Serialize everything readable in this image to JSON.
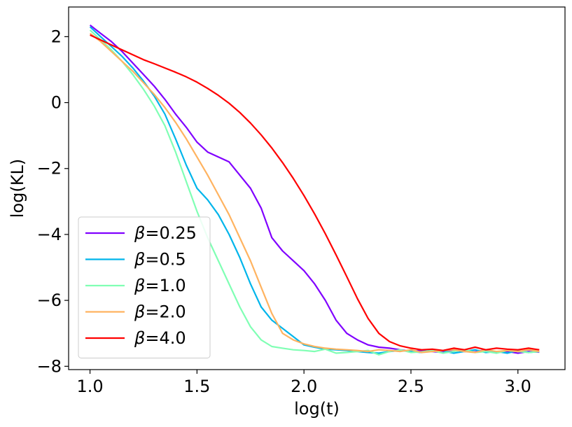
{
  "chart_data": {
    "type": "line",
    "title": "",
    "xlabel": "log(t)",
    "ylabel": "log(KL)",
    "xlim": [
      0.9,
      3.22
    ],
    "ylim": [
      -8.1,
      2.9
    ],
    "xticks": [
      1.0,
      1.5,
      2.0,
      2.5,
      3.0
    ],
    "xtick_labels": [
      "1.0",
      "1.5",
      "2.0",
      "2.5",
      "3.0"
    ],
    "yticks": [
      2,
      0,
      -2,
      -4,
      -6,
      -8
    ],
    "ytick_labels": [
      "2",
      "0",
      "−2",
      "−4",
      "−6",
      "−8"
    ],
    "legend_position": "lower-left",
    "grid": false,
    "series": [
      {
        "name": "β=0.25",
        "symbol": "β",
        "value_label": "=0.25",
        "color": "#8000ff",
        "x": [
          1.0,
          1.05,
          1.1,
          1.15,
          1.2,
          1.25,
          1.3,
          1.35,
          1.4,
          1.45,
          1.5,
          1.55,
          1.6,
          1.65,
          1.7,
          1.75,
          1.8,
          1.85,
          1.9,
          1.95,
          2.0,
          2.05,
          2.1,
          2.15,
          2.2,
          2.25,
          2.3,
          2.35,
          2.4,
          2.45,
          2.5,
          2.55,
          2.6,
          2.65,
          2.7,
          2.75,
          2.8,
          2.85,
          2.9,
          2.95,
          3.0,
          3.05,
          3.1
        ],
        "y": [
          2.35,
          2.1,
          1.85,
          1.55,
          1.2,
          0.85,
          0.5,
          0.1,
          -0.35,
          -0.75,
          -1.2,
          -1.5,
          -1.65,
          -1.8,
          -2.2,
          -2.6,
          -3.2,
          -4.1,
          -4.5,
          -4.8,
          -5.1,
          -5.5,
          -6.0,
          -6.6,
          -7.0,
          -7.2,
          -7.35,
          -7.42,
          -7.45,
          -7.5,
          -7.55,
          -7.52,
          -7.55,
          -7.58,
          -7.5,
          -7.55,
          -7.56,
          -7.5,
          -7.58,
          -7.55,
          -7.6,
          -7.55,
          -7.57
        ]
      },
      {
        "name": "β=0.5",
        "symbol": "β",
        "value_label": "=0.5",
        "color": "#00b5eb",
        "x": [
          1.0,
          1.05,
          1.1,
          1.15,
          1.2,
          1.25,
          1.3,
          1.35,
          1.4,
          1.45,
          1.5,
          1.55,
          1.6,
          1.65,
          1.7,
          1.75,
          1.8,
          1.85,
          1.9,
          1.95,
          2.0,
          2.05,
          2.1,
          2.15,
          2.2,
          2.25,
          2.3,
          2.35,
          2.4,
          2.45,
          2.5,
          2.55,
          2.6,
          2.65,
          2.7,
          2.75,
          2.8,
          2.85,
          2.9,
          2.95,
          3.0,
          3.05,
          3.1
        ],
        "y": [
          2.3,
          2.0,
          1.7,
          1.4,
          1.05,
          0.65,
          0.2,
          -0.35,
          -1.1,
          -1.9,
          -2.6,
          -2.95,
          -3.4,
          -4.0,
          -4.7,
          -5.5,
          -6.2,
          -6.6,
          -6.85,
          -7.1,
          -7.35,
          -7.42,
          -7.48,
          -7.5,
          -7.52,
          -7.55,
          -7.58,
          -7.6,
          -7.55,
          -7.52,
          -7.55,
          -7.58,
          -7.5,
          -7.53,
          -7.6,
          -7.55,
          -7.5,
          -7.58,
          -7.55,
          -7.6,
          -7.52,
          -7.58,
          -7.55
        ]
      },
      {
        "name": "β=1.0",
        "symbol": "β",
        "value_label": "=1.0",
        "color": "#80ffb4",
        "x": [
          1.0,
          1.05,
          1.1,
          1.15,
          1.2,
          1.25,
          1.3,
          1.35,
          1.4,
          1.45,
          1.5,
          1.55,
          1.6,
          1.65,
          1.7,
          1.75,
          1.8,
          1.85,
          1.9,
          1.95,
          2.0,
          2.05,
          2.1,
          2.15,
          2.2,
          2.25,
          2.3,
          2.35,
          2.4,
          2.45,
          2.5,
          2.55,
          2.6,
          2.65,
          2.7,
          2.75,
          2.8,
          2.85,
          2.9,
          2.95,
          3.0,
          3.05,
          3.1
        ],
        "y": [
          2.2,
          1.9,
          1.6,
          1.25,
          0.85,
          0.4,
          -0.1,
          -0.7,
          -1.5,
          -2.4,
          -3.3,
          -4.1,
          -4.8,
          -5.5,
          -6.2,
          -6.8,
          -7.2,
          -7.4,
          -7.45,
          -7.5,
          -7.52,
          -7.55,
          -7.48,
          -7.6,
          -7.58,
          -7.55,
          -7.52,
          -7.65,
          -7.55,
          -7.5,
          -7.58,
          -7.56,
          -7.52,
          -7.6,
          -7.55,
          -7.5,
          -7.58,
          -7.55,
          -7.6,
          -7.52,
          -7.55,
          -7.58,
          -7.55
        ]
      },
      {
        "name": "β=2.0",
        "symbol": "β",
        "value_label": "=2.0",
        "color": "#ffb360",
        "x": [
          1.0,
          1.05,
          1.1,
          1.15,
          1.2,
          1.25,
          1.3,
          1.35,
          1.4,
          1.45,
          1.5,
          1.55,
          1.6,
          1.65,
          1.7,
          1.75,
          1.8,
          1.85,
          1.9,
          1.95,
          2.0,
          2.05,
          2.1,
          2.15,
          2.2,
          2.25,
          2.3,
          2.35,
          2.4,
          2.45,
          2.5,
          2.55,
          2.6,
          2.65,
          2.7,
          2.75,
          2.8,
          2.85,
          2.9,
          2.95,
          3.0,
          3.05,
          3.1
        ],
        "y": [
          2.1,
          1.85,
          1.55,
          1.25,
          0.95,
          0.6,
          0.25,
          -0.15,
          -0.6,
          -1.1,
          -1.65,
          -2.2,
          -2.8,
          -3.4,
          -4.1,
          -4.8,
          -5.6,
          -6.4,
          -7.0,
          -7.2,
          -7.32,
          -7.4,
          -7.45,
          -7.48,
          -7.5,
          -7.52,
          -7.55,
          -7.5,
          -7.52,
          -7.55,
          -7.5,
          -7.58,
          -7.55,
          -7.52,
          -7.5,
          -7.55,
          -7.58,
          -7.5,
          -7.55,
          -7.52,
          -7.55,
          -7.5,
          -7.55
        ]
      },
      {
        "name": "β=4.0",
        "symbol": "β",
        "value_label": "=4.0",
        "color": "#ff0000",
        "x": [
          1.0,
          1.05,
          1.1,
          1.15,
          1.2,
          1.25,
          1.3,
          1.35,
          1.4,
          1.45,
          1.5,
          1.55,
          1.6,
          1.65,
          1.7,
          1.75,
          1.8,
          1.85,
          1.9,
          1.95,
          2.0,
          2.05,
          2.1,
          2.15,
          2.2,
          2.25,
          2.3,
          2.35,
          2.4,
          2.45,
          2.5,
          2.55,
          2.6,
          2.65,
          2.7,
          2.75,
          2.8,
          2.85,
          2.9,
          2.95,
          3.0,
          3.05,
          3.1
        ],
        "y": [
          2.05,
          1.9,
          1.75,
          1.6,
          1.45,
          1.3,
          1.18,
          1.05,
          0.92,
          0.78,
          0.62,
          0.43,
          0.22,
          -0.02,
          -0.3,
          -0.62,
          -0.98,
          -1.38,
          -1.82,
          -2.3,
          -2.82,
          -3.38,
          -3.98,
          -4.62,
          -5.28,
          -5.95,
          -6.55,
          -7.0,
          -7.25,
          -7.38,
          -7.45,
          -7.5,
          -7.48,
          -7.52,
          -7.45,
          -7.5,
          -7.42,
          -7.5,
          -7.45,
          -7.48,
          -7.5,
          -7.45,
          -7.5
        ]
      }
    ]
  }
}
